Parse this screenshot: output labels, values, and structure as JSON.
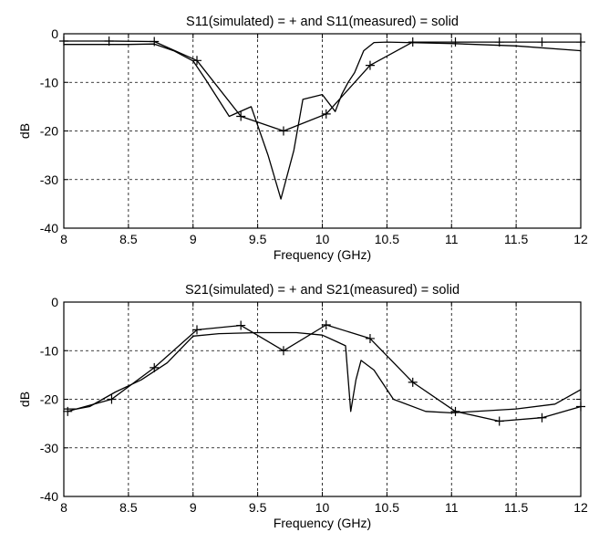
{
  "chart_data": [
    {
      "type": "line",
      "title": "S11(simulated) = + and S11(measured) = solid",
      "xlabel": "Frequency (GHz)",
      "ylabel": "dB",
      "xlim": [
        8,
        12
      ],
      "ylim": [
        -40,
        0
      ],
      "xticks": [
        "8",
        "8.5",
        "9",
        "9.5",
        "10",
        "10.5",
        "11",
        "11.5",
        "12"
      ],
      "yticks": [
        "0",
        "-10",
        "-20",
        "-30",
        "-40"
      ],
      "grid": true,
      "line_color": "#000000",
      "series": [
        {
          "marker": "+",
          "x": [
            8.0,
            8.35,
            8.7,
            9.03,
            9.37,
            9.7,
            10.03,
            10.37,
            10.7,
            11.03,
            11.37,
            11.7,
            12.0
          ],
          "y": [
            -1.5,
            -1.5,
            -1.6,
            -5.5,
            -17.0,
            -20.0,
            -16.5,
            -6.5,
            -1.7,
            -1.7,
            -1.7,
            -1.7,
            -1.7
          ]
        },
        {
          "marker": "none",
          "x": [
            8.0,
            8.5,
            8.7,
            8.85,
            9.0,
            9.1,
            9.28,
            9.45,
            9.58,
            9.68,
            9.78,
            9.85,
            10.0,
            10.1,
            10.15,
            10.2,
            10.25,
            10.32,
            10.4,
            10.5,
            11.0,
            11.5,
            12.0
          ],
          "y": [
            -2.2,
            -2.2,
            -2.1,
            -3.5,
            -5.6,
            -9.5,
            -17.0,
            -15.0,
            -25.0,
            -34.0,
            -24.0,
            -13.5,
            -12.5,
            -16.0,
            -12.5,
            -10.0,
            -8.0,
            -3.5,
            -1.8,
            -1.7,
            -2.0,
            -2.5,
            -3.5
          ]
        }
      ]
    },
    {
      "type": "line",
      "title": "S21(simulated) = + and S21(measured) = solid",
      "xlabel": "Frequency (GHz)",
      "ylabel": "dB",
      "xlim": [
        8,
        12
      ],
      "ylim": [
        -40,
        0
      ],
      "xticks": [
        "8",
        "8.5",
        "9",
        "9.5",
        "10",
        "10.5",
        "11",
        "11.5",
        "12"
      ],
      "yticks": [
        "0",
        "-10",
        "-20",
        "-30",
        "-40"
      ],
      "grid": true,
      "line_color": "#000000",
      "series": [
        {
          "marker": "+",
          "x": [
            8.03,
            8.37,
            8.7,
            9.03,
            9.37,
            9.7,
            10.03,
            10.37,
            10.7,
            11.03,
            11.37,
            11.7,
            12.0
          ],
          "y": [
            -22.5,
            -20.0,
            -13.5,
            -5.7,
            -4.8,
            -10.0,
            -4.7,
            -7.5,
            -16.5,
            -22.5,
            -24.5,
            -23.8,
            -21.5
          ]
        },
        {
          "marker": "none",
          "x": [
            8.0,
            8.1,
            8.2,
            8.4,
            8.6,
            8.8,
            9.0,
            9.2,
            9.5,
            9.8,
            10.0,
            10.1,
            10.18,
            10.22,
            10.26,
            10.3,
            10.4,
            10.55,
            10.8,
            11.0,
            11.5,
            11.8,
            12.0
          ],
          "y": [
            -22.0,
            -22.0,
            -21.5,
            -18.5,
            -16.0,
            -12.5,
            -7.0,
            -6.5,
            -6.3,
            -6.3,
            -6.8,
            -8.0,
            -9.0,
            -22.5,
            -16.0,
            -12.0,
            -14.0,
            -20.0,
            -22.5,
            -22.8,
            -22.0,
            -21.0,
            -18.0
          ]
        }
      ]
    }
  ]
}
